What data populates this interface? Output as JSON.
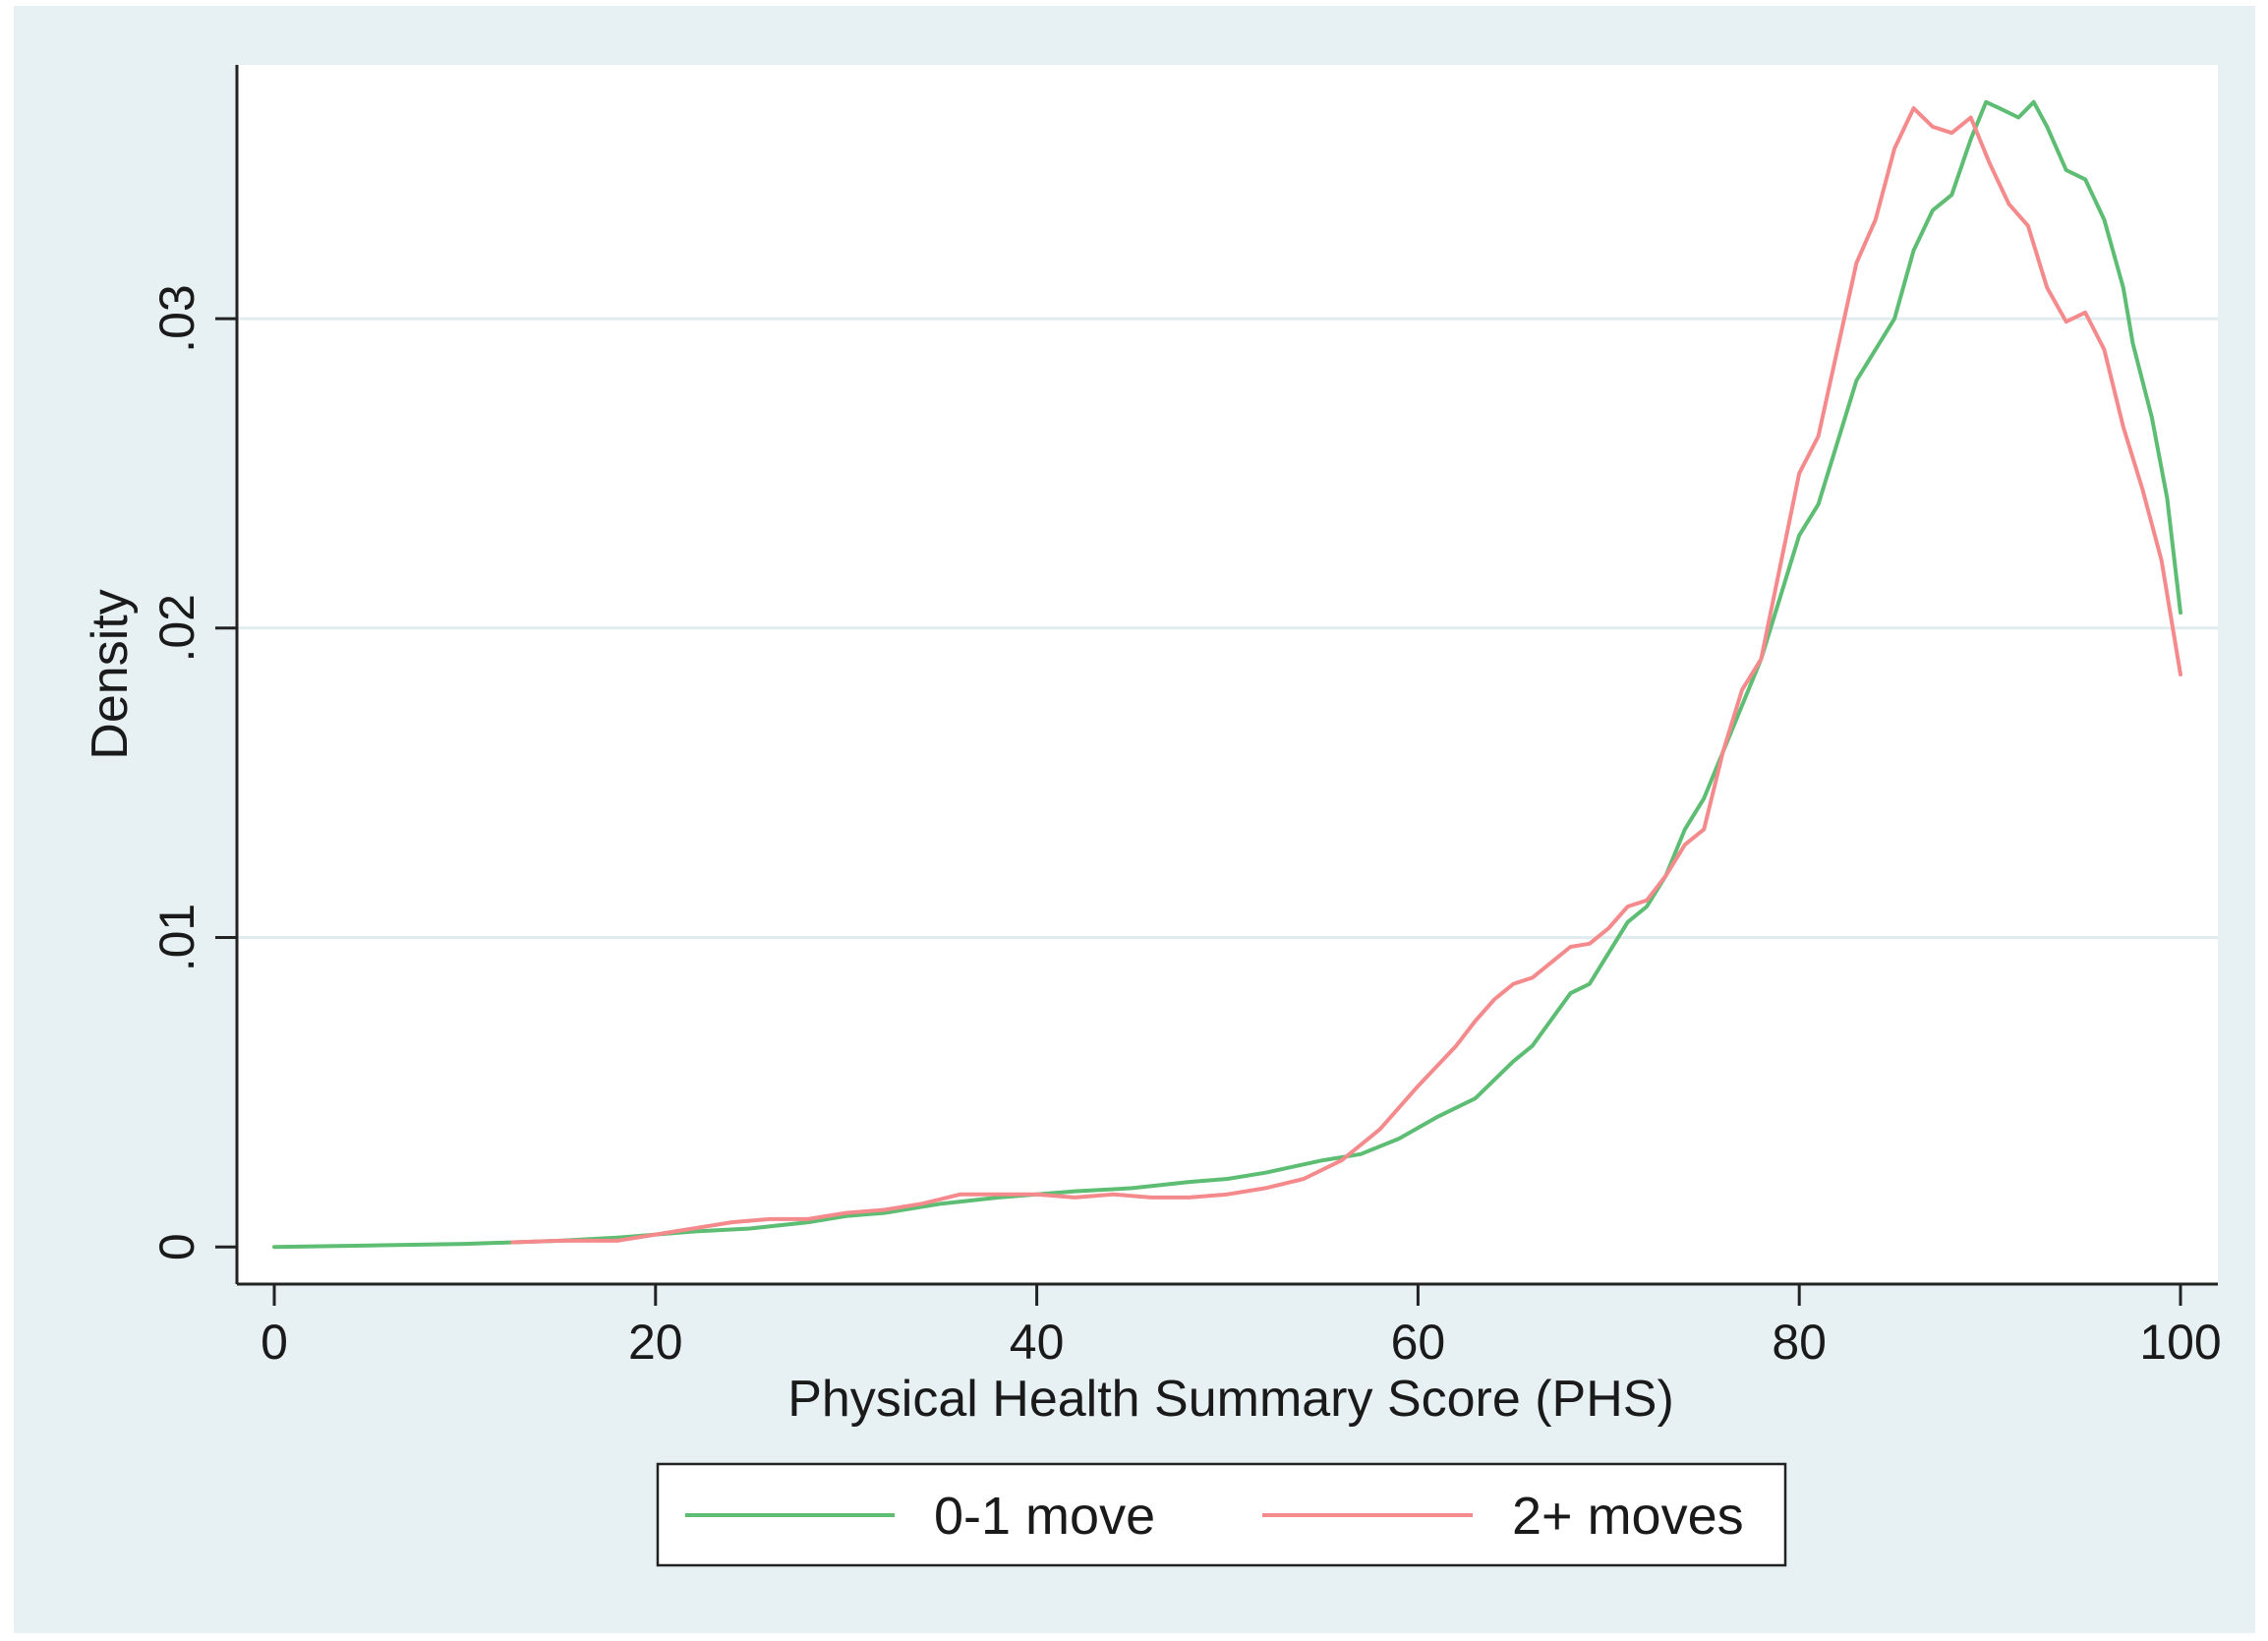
{
  "chart_data": {
    "type": "line",
    "title": "",
    "xlabel": "Physical Health Summary Score (PHS)",
    "ylabel": "Density",
    "xlim": [
      0,
      100
    ],
    "ylim": [
      -0.0012,
      0.0382
    ],
    "x_ticks": [
      0,
      20,
      40,
      60,
      80,
      100
    ],
    "x_tick_labels": [
      "0",
      "20",
      "40",
      "60",
      "80",
      "100"
    ],
    "y_ticks": [
      0,
      0.01,
      0.02,
      0.03
    ],
    "y_tick_labels": [
      "0",
      ".01",
      ".02",
      ".03"
    ],
    "grid": "horizontal",
    "legend_position": "bottom",
    "colors": {
      "outer_background": "#e7f0f3",
      "plot_background": "#ffffff",
      "gridline": "#e1ecef"
    },
    "series": [
      {
        "name": "0-1 move",
        "color": "#5cbd73",
        "points": [
          [
            0,
            0.0
          ],
          [
            5,
            5e-05
          ],
          [
            10,
            0.0001
          ],
          [
            15,
            0.0002
          ],
          [
            18,
            0.0003
          ],
          [
            20,
            0.0004
          ],
          [
            22,
            0.0005
          ],
          [
            25,
            0.0006
          ],
          [
            28,
            0.0008
          ],
          [
            30,
            0.001
          ],
          [
            32,
            0.0011
          ],
          [
            35,
            0.0014
          ],
          [
            38,
            0.0016
          ],
          [
            40,
            0.0017
          ],
          [
            42,
            0.0018
          ],
          [
            45,
            0.0019
          ],
          [
            48,
            0.0021
          ],
          [
            50,
            0.0022
          ],
          [
            52,
            0.0024
          ],
          [
            55,
            0.0028
          ],
          [
            57,
            0.003
          ],
          [
            59,
            0.0035
          ],
          [
            61,
            0.0042
          ],
          [
            63,
            0.0048
          ],
          [
            65,
            0.006
          ],
          [
            66,
            0.0065
          ],
          [
            68,
            0.0082
          ],
          [
            69,
            0.0085
          ],
          [
            70,
            0.0095
          ],
          [
            71,
            0.0105
          ],
          [
            72,
            0.011
          ],
          [
            73,
            0.012
          ],
          [
            74,
            0.0135
          ],
          [
            75,
            0.0145
          ],
          [
            76,
            0.016
          ],
          [
            77,
            0.0175
          ],
          [
            78,
            0.019
          ],
          [
            79,
            0.021
          ],
          [
            80,
            0.023
          ],
          [
            81,
            0.024
          ],
          [
            82,
            0.026
          ],
          [
            83,
            0.028
          ],
          [
            84,
            0.029
          ],
          [
            85,
            0.03
          ],
          [
            86,
            0.0322
          ],
          [
            87,
            0.0335
          ],
          [
            88,
            0.034
          ],
          [
            89,
            0.0358
          ],
          [
            89.8,
            0.037
          ],
          [
            90.5,
            0.0368
          ],
          [
            91.5,
            0.0365
          ],
          [
            92.3,
            0.037
          ],
          [
            93,
            0.0362
          ],
          [
            94,
            0.0348
          ],
          [
            95,
            0.0345
          ],
          [
            96,
            0.0332
          ],
          [
            97,
            0.031
          ],
          [
            97.5,
            0.0292
          ],
          [
            98.5,
            0.0268
          ],
          [
            99.3,
            0.0242
          ],
          [
            100,
            0.0205
          ]
        ]
      },
      {
        "name": "2+ moves",
        "color": "#f58a8c",
        "points": [
          [
            12.5,
            0.00015
          ],
          [
            15,
            0.0002
          ],
          [
            18,
            0.0002
          ],
          [
            20,
            0.0004
          ],
          [
            22,
            0.0006
          ],
          [
            24,
            0.0008
          ],
          [
            26,
            0.0009
          ],
          [
            28,
            0.0009
          ],
          [
            30,
            0.0011
          ],
          [
            32,
            0.0012
          ],
          [
            34,
            0.0014
          ],
          [
            36,
            0.0017
          ],
          [
            38,
            0.0017
          ],
          [
            40,
            0.0017
          ],
          [
            42,
            0.0016
          ],
          [
            44,
            0.0017
          ],
          [
            46,
            0.0016
          ],
          [
            48,
            0.0016
          ],
          [
            50,
            0.0017
          ],
          [
            52,
            0.0019
          ],
          [
            54,
            0.0022
          ],
          [
            56,
            0.0028
          ],
          [
            58,
            0.0038
          ],
          [
            60,
            0.0052
          ],
          [
            62,
            0.0065
          ],
          [
            63,
            0.0073
          ],
          [
            64,
            0.008
          ],
          [
            65,
            0.0085
          ],
          [
            66,
            0.0087
          ],
          [
            67,
            0.0092
          ],
          [
            68,
            0.0097
          ],
          [
            69,
            0.0098
          ],
          [
            70,
            0.0103
          ],
          [
            71,
            0.011
          ],
          [
            72,
            0.0112
          ],
          [
            73,
            0.012
          ],
          [
            74,
            0.013
          ],
          [
            75,
            0.0135
          ],
          [
            76,
            0.016
          ],
          [
            77,
            0.018
          ],
          [
            78,
            0.019
          ],
          [
            79,
            0.022
          ],
          [
            80,
            0.025
          ],
          [
            81,
            0.0262
          ],
          [
            82,
            0.029
          ],
          [
            83,
            0.0318
          ],
          [
            84,
            0.0332
          ],
          [
            85,
            0.0355
          ],
          [
            86,
            0.0368
          ],
          [
            87,
            0.0362
          ],
          [
            88,
            0.036
          ],
          [
            89,
            0.0365
          ],
          [
            90,
            0.035
          ],
          [
            91,
            0.0337
          ],
          [
            92,
            0.033
          ],
          [
            93,
            0.031
          ],
          [
            94,
            0.0299
          ],
          [
            95,
            0.0302
          ],
          [
            96,
            0.029
          ],
          [
            97,
            0.0265
          ],
          [
            98,
            0.0245
          ],
          [
            99,
            0.0222
          ],
          [
            100,
            0.0185
          ]
        ]
      }
    ]
  }
}
